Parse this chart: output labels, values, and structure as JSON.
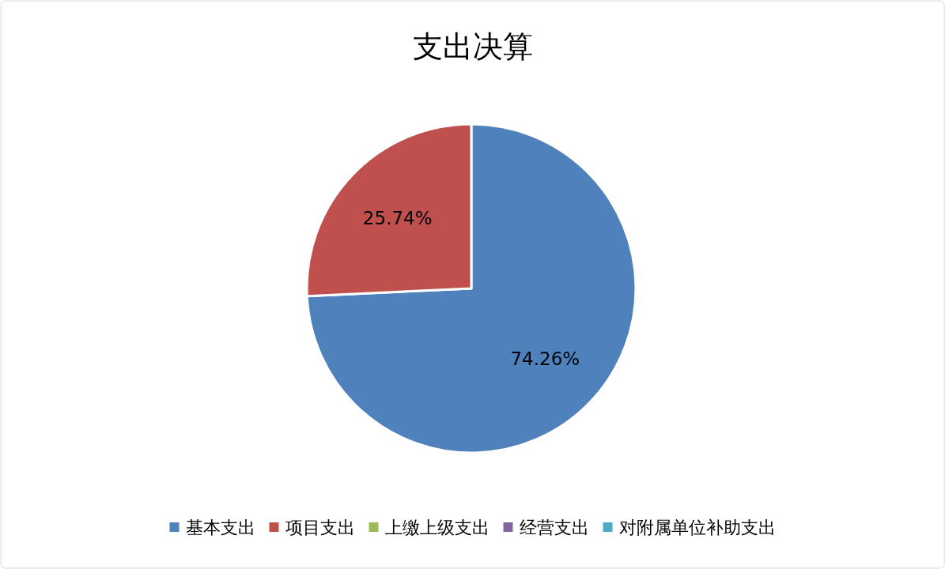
{
  "chart_data": {
    "type": "pie",
    "title": "支出决算",
    "categories": [
      "基本支出",
      "项目支出",
      "上缴上级支出",
      "经营支出",
      "对附属单位补助支出"
    ],
    "values": [
      74.26,
      25.74,
      0,
      0,
      0
    ],
    "colors": [
      "#4f81bd",
      "#c0504d",
      "#9bbb59",
      "#8064a2",
      "#4bacc6"
    ],
    "value_labels": [
      "74.26%",
      "25.74%",
      null,
      null,
      null
    ],
    "legend": "bottom"
  }
}
